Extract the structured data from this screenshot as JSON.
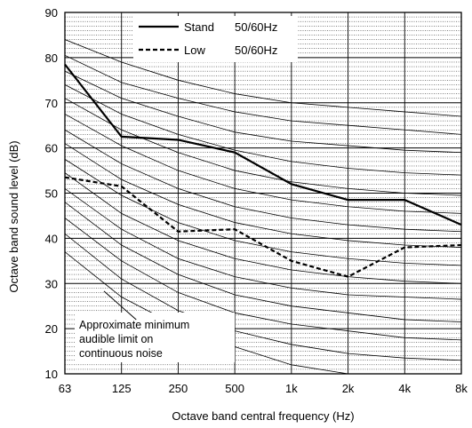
{
  "chart_data": {
    "type": "line",
    "xlabel": "Octave band central frequency (Hz)",
    "ylabel": "Octave band sound level (dB)",
    "categories": [
      "63",
      "125",
      "250",
      "500",
      "1k",
      "2k",
      "4k",
      "8k"
    ],
    "ylim": [
      10,
      90
    ],
    "yticks": [
      "10",
      "20",
      "30",
      "40",
      "50",
      "60",
      "70",
      "80",
      "90"
    ],
    "grid": true,
    "legend_position": "top-center",
    "series": [
      {
        "name": "Stand",
        "legend_suffix": "50/60Hz",
        "style": "solid",
        "values": [
          78.5,
          62.5,
          61.8,
          59.0,
          52.0,
          48.5,
          48.5,
          43.0
        ]
      },
      {
        "name": "Low",
        "legend_suffix": "50/60Hz",
        "style": "dashed",
        "values": [
          53.5,
          51.5,
          41.5,
          42.0,
          35.0,
          31.5,
          38.0,
          38.5
        ]
      }
    ],
    "nc_curves": [
      [
        84.0,
        79.0,
        75.0,
        72.0,
        70.0,
        69.0,
        68.0,
        67.0
      ],
      [
        80.5,
        74.5,
        71.0,
        68.0,
        66.0,
        65.0,
        64.0,
        63.0
      ],
      [
        77.0,
        71.0,
        67.0,
        63.5,
        61.5,
        60.5,
        59.5,
        59.0
      ],
      [
        74.0,
        67.5,
        63.0,
        59.5,
        57.0,
        55.5,
        54.5,
        54.0
      ],
      [
        71.0,
        64.0,
        59.0,
        55.0,
        52.5,
        51.0,
        50.0,
        49.5
      ],
      [
        67.5,
        60.5,
        55.0,
        51.0,
        48.5,
        47.0,
        46.0,
        45.5
      ],
      [
        64.0,
        56.5,
        51.0,
        47.0,
        44.5,
        43.0,
        42.0,
        41.5
      ],
      [
        61.0,
        53.0,
        47.5,
        43.5,
        41.0,
        39.5,
        38.5,
        38.0
      ],
      [
        57.5,
        49.5,
        43.5,
        39.5,
        37.0,
        35.5,
        34.5,
        34.0
      ],
      [
        54.5,
        45.5,
        39.5,
        35.5,
        33.0,
        31.5,
        30.5,
        30.0
      ],
      [
        51.0,
        42.0,
        35.5,
        31.5,
        29.0,
        27.5,
        27.0,
        26.5
      ],
      [
        48.0,
        38.5,
        32.0,
        27.5,
        25.0,
        23.5,
        22.0,
        21.5
      ],
      [
        44.5,
        35.0,
        28.0,
        23.5,
        21.0,
        19.5,
        18.0,
        17.5
      ],
      [
        41.0,
        31.0,
        24.0,
        19.5,
        16.5,
        14.5,
        13.5,
        13.0
      ],
      [
        37.0,
        27.0,
        20.5,
        16.0,
        12.0,
        10.0,
        9.0,
        9.0
      ]
    ],
    "annotation": {
      "lines": [
        "Approximate minimum",
        "audible limit on",
        "continuous noise"
      ],
      "pointer": {
        "from": {
          "x": 1.26,
          "y": 22.0
        },
        "to": {
          "x": 0.69,
          "y": 28.3
        }
      }
    },
    "colors": {
      "series": "#000000",
      "grid": "#000000",
      "background": "#ffffff"
    }
  }
}
